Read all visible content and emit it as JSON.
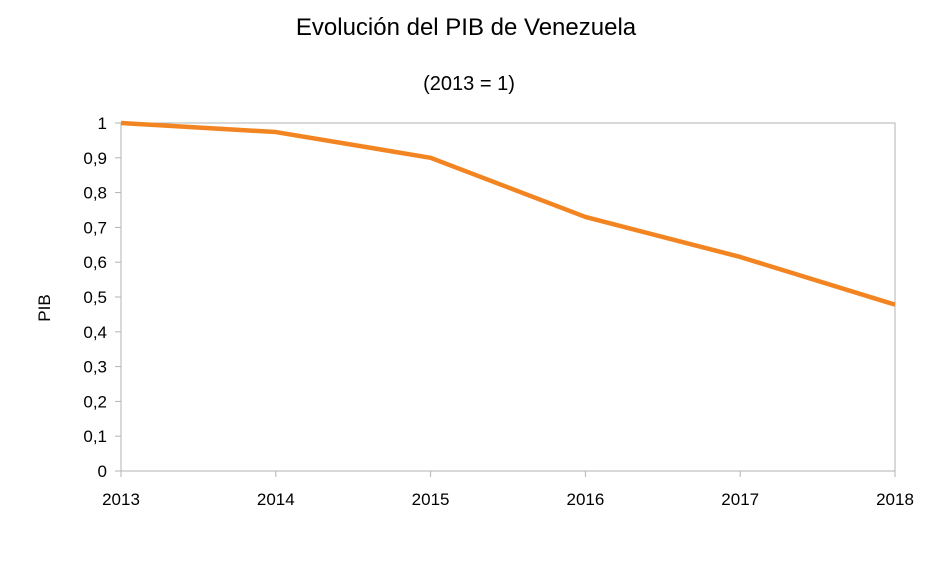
{
  "chart_data": {
    "type": "line",
    "title": "Evolución del PIB de Venezuela",
    "subtitle": "(2013 = 1)",
    "xlabel": "",
    "ylabel": "PIB",
    "x": [
      "2013",
      "2014",
      "2015",
      "2016",
      "2017",
      "2018"
    ],
    "ylim": [
      0,
      1
    ],
    "yticks": [
      "0",
      "0,1",
      "0,2",
      "0,3",
      "0,4",
      "0,5",
      "0,6",
      "0,7",
      "0,8",
      "0,9",
      "1"
    ],
    "grid": false,
    "legend": "none",
    "series": [
      {
        "name": "PIB",
        "values": [
          1.0,
          0.974,
          0.9,
          0.73,
          0.615,
          0.478
        ],
        "color": "#f28522"
      }
    ]
  }
}
